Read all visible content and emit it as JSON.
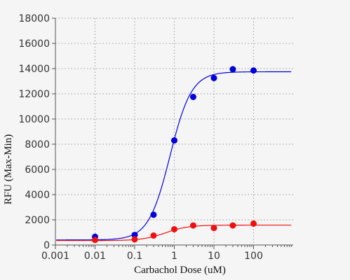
{
  "chart_data": {
    "type": "scatter",
    "title": "",
    "xlabel": "Carbachol Dose (uM)",
    "ylabel": "RFU (Max-Min)",
    "xscale": "log",
    "xlim": [
      0.001,
      1000
    ],
    "ylim": [
      0,
      18000
    ],
    "xticks": [
      0.001,
      0.01,
      0.1,
      1,
      10,
      100
    ],
    "xtick_labels": [
      "0.001",
      "0.01",
      "0.1",
      "1",
      "10",
      "100"
    ],
    "yticks": [
      0,
      2000,
      4000,
      6000,
      8000,
      10000,
      12000,
      14000,
      16000,
      18000
    ],
    "ytick_labels": [
      "0",
      "2000",
      "4000",
      "6000",
      "8000",
      "10000",
      "12000",
      "14000",
      "16000",
      "18000"
    ],
    "grid": true,
    "series": [
      {
        "color": "#0000dd",
        "points": [
          {
            "x": 0.01,
            "y": 650
          },
          {
            "x": 0.1,
            "y": 800
          },
          {
            "x": 0.3,
            "y": 2400
          },
          {
            "x": 1,
            "y": 8300
          },
          {
            "x": 3,
            "y": 11750
          },
          {
            "x": 10,
            "y": 13250
          },
          {
            "x": 30,
            "y": 13950
          },
          {
            "x": 100,
            "y": 13850
          }
        ],
        "fit": {
          "bottom": 400,
          "top": 13750,
          "ec50": 0.78,
          "hill": 1.6
        }
      },
      {
        "color": "#ee1111",
        "points": [
          {
            "x": 0.01,
            "y": 400
          },
          {
            "x": 0.1,
            "y": 450
          },
          {
            "x": 0.3,
            "y": 750
          },
          {
            "x": 1,
            "y": 1250
          },
          {
            "x": 3,
            "y": 1550
          },
          {
            "x": 10,
            "y": 1350
          },
          {
            "x": 30,
            "y": 1550
          },
          {
            "x": 100,
            "y": 1700
          }
        ],
        "fit": {
          "bottom": 350,
          "top": 1580,
          "ec50": 0.6,
          "hill": 1.5
        }
      }
    ]
  }
}
